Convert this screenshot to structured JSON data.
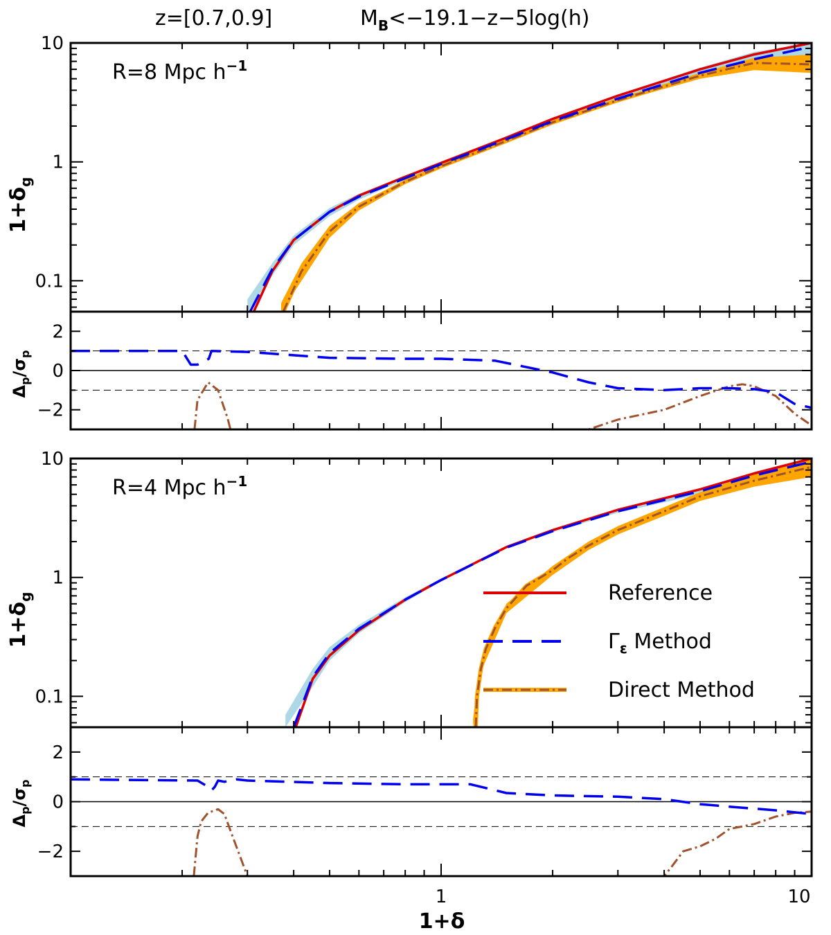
{
  "title_left": "z=[0.7,0.9]",
  "title_right_main": "M",
  "title_right_sub": "B",
  "title_right_rest": "<−19.1−z−5log(h)",
  "xlabel": "1+δ",
  "ylabel_main_base": "1+δ",
  "ylabel_main_sub": "g",
  "ylabel_resid_base": "Δ",
  "ylabel_resid_sub1": "p",
  "ylabel_resid_mid": "/σ",
  "ylabel_resid_sub2": "p",
  "legend": {
    "reference": "Reference",
    "gamma_symbol": "Γ",
    "gamma_sub": "ε",
    "gamma_rest": " Method",
    "direct": "Direct Method"
  },
  "colors": {
    "reference": "#dd0000",
    "gamma": "#0000ee",
    "direct": "#a0522d",
    "direct_band": "#ffa500",
    "gamma_band": "#add8e6",
    "ref_band": "#d2b48c"
  },
  "chart_data": [
    {
      "type": "line",
      "panel": "top-main",
      "annotation": "R=8 Mpc h",
      "annotation_sup": "−1",
      "xscale": "log",
      "yscale": "log",
      "xlim": [
        0.1,
        10
      ],
      "ylim": [
        0.055,
        10
      ],
      "xticks_major": [
        1,
        10
      ],
      "yticks": [
        0.1,
        1,
        10
      ],
      "yticklabels": [
        "0.1",
        "1",
        "10"
      ],
      "series": [
        {
          "name": "Reference",
          "x": [
            0.312,
            0.35,
            0.4,
            0.5,
            0.6,
            0.8,
            1.0,
            1.5,
            2.0,
            3.0,
            5.0,
            7.0,
            10.0
          ],
          "y": [
            0.055,
            0.12,
            0.22,
            0.38,
            0.52,
            0.75,
            0.98,
            1.6,
            2.3,
            3.6,
            6.0,
            8.0,
            10.0
          ]
        },
        {
          "name": "Γε Method",
          "x": [
            0.305,
            0.35,
            0.4,
            0.5,
            0.6,
            0.8,
            1.0,
            1.5,
            2.0,
            3.0,
            5.0,
            7.0,
            10.0
          ],
          "y": [
            0.055,
            0.125,
            0.22,
            0.38,
            0.51,
            0.73,
            0.96,
            1.55,
            2.2,
            3.4,
            5.6,
            7.3,
            9.3
          ]
        },
        {
          "name": "Direct Method",
          "x": [
            0.375,
            0.42,
            0.5,
            0.6,
            0.8,
            1.0,
            1.5,
            2.0,
            3.0,
            5.0,
            7.0,
            10.0
          ],
          "y": [
            0.055,
            0.12,
            0.26,
            0.42,
            0.68,
            0.92,
            1.5,
            2.15,
            3.3,
            5.3,
            6.8,
            6.6
          ]
        }
      ],
      "bands": [
        {
          "name": "Γε Method",
          "x": [
            0.3,
            0.35,
            0.4,
            0.5,
            0.6,
            0.8,
            1.0,
            1.5,
            2.0,
            3.0,
            5.0,
            7.0,
            10.0
          ],
          "lower": [
            0.055,
            0.11,
            0.2,
            0.35,
            0.48,
            0.71,
            0.94,
            1.5,
            2.1,
            3.2,
            5.0,
            6.0,
            6.2
          ],
          "upper": [
            0.07,
            0.14,
            0.24,
            0.41,
            0.54,
            0.76,
            0.99,
            1.62,
            2.32,
            3.65,
            6.2,
            8.4,
            10.0
          ]
        },
        {
          "name": "Direct Method",
          "x": [
            0.37,
            0.42,
            0.5,
            0.6,
            0.8,
            1.0,
            1.5,
            2.0,
            3.0,
            5.0,
            7.0,
            10.0
          ],
          "lower": [
            0.055,
            0.1,
            0.23,
            0.39,
            0.65,
            0.9,
            1.47,
            2.1,
            3.2,
            5.0,
            5.9,
            5.6
          ],
          "upper": [
            0.065,
            0.14,
            0.29,
            0.45,
            0.7,
            0.95,
            1.53,
            2.2,
            3.4,
            5.6,
            7.5,
            8.0
          ]
        }
      ]
    },
    {
      "type": "line",
      "panel": "top-residual",
      "xscale": "log",
      "xlim": [
        0.1,
        10
      ],
      "ylim": [
        -3,
        3
      ],
      "yticks": [
        -2,
        0,
        2
      ],
      "yticklabels": [
        "−2",
        "0",
        "2"
      ],
      "reference_lines": [
        {
          "y": 0,
          "style": "solid"
        },
        {
          "y": 1,
          "style": "dashed"
        },
        {
          "y": -1,
          "style": "dashed"
        }
      ],
      "series": [
        {
          "name": "Γε Method",
          "x": [
            0.1,
            0.2,
            0.211,
            0.22,
            0.236,
            0.24,
            0.3,
            0.5,
            0.8,
            1.0,
            1.4,
            2.0,
            2.5,
            3.0,
            4.0,
            5.0,
            6.0,
            7.0,
            8.0,
            9.0,
            10.0
          ],
          "y": [
            1.0,
            1.0,
            0.3,
            0.3,
            0.6,
            1.0,
            0.95,
            0.65,
            0.6,
            0.6,
            0.5,
            -0.1,
            -0.6,
            -0.9,
            -1.0,
            -0.9,
            -0.9,
            -0.95,
            -1.1,
            -1.7,
            -1.9
          ]
        },
        {
          "name": "Direct Method",
          "x": [
            0.216,
            0.22,
            0.225,
            0.235,
            0.25,
            0.265,
            0.27,
            2.5,
            3.0,
            4.0,
            5.0,
            6.0,
            6.5,
            7.0,
            8.0,
            9.0,
            10.0
          ],
          "y": [
            -3.0,
            -1.5,
            -1.2,
            -0.6,
            -1.0,
            -2.4,
            -3.0,
            -3.0,
            -2.5,
            -2.0,
            -1.3,
            -0.8,
            -0.7,
            -0.8,
            -1.3,
            -2.2,
            -2.8
          ]
        }
      ]
    },
    {
      "type": "line",
      "panel": "bottom-main",
      "annotation": "R=4 Mpc h",
      "annotation_sup": "−1",
      "xscale": "log",
      "yscale": "log",
      "xlim": [
        0.1,
        10
      ],
      "ylim": [
        0.055,
        10
      ],
      "xticks_major": [
        1,
        10
      ],
      "yticks": [
        0.1,
        1,
        10
      ],
      "yticklabels": [
        "0.1",
        "1",
        "10"
      ],
      "series": [
        {
          "name": "Reference",
          "x": [
            0.405,
            0.45,
            0.5,
            0.6,
            0.8,
            1.0,
            1.5,
            2.0,
            3.0,
            5.0,
            7.0,
            10.0
          ],
          "y": [
            0.055,
            0.14,
            0.22,
            0.36,
            0.65,
            0.95,
            1.8,
            2.5,
            3.7,
            5.5,
            7.5,
            10.0
          ]
        },
        {
          "name": "Γε Method",
          "x": [
            0.4,
            0.45,
            0.5,
            0.6,
            0.8,
            1.0,
            1.5,
            2.0,
            3.0,
            5.0,
            7.0,
            10.0
          ],
          "y": [
            0.055,
            0.145,
            0.23,
            0.37,
            0.65,
            0.95,
            1.78,
            2.45,
            3.6,
            5.3,
            7.2,
            9.4
          ]
        },
        {
          "name": "Direct Method",
          "x": [
            1.24,
            1.25,
            1.28,
            1.32,
            1.4,
            1.5,
            1.7,
            2.0,
            2.2,
            2.5,
            3.0,
            4.0,
            5.0,
            7.0,
            10.0
          ],
          "y": [
            0.055,
            0.1,
            0.17,
            0.25,
            0.38,
            0.55,
            0.85,
            1.15,
            1.45,
            1.85,
            2.5,
            3.6,
            4.8,
            6.5,
            8.5
          ]
        }
      ],
      "bands": [
        {
          "name": "Γε Method",
          "x": [
            0.38,
            0.45,
            0.5,
            0.6,
            0.8,
            1.0,
            1.5,
            2.0,
            3.0,
            5.0,
            7.0,
            10.0
          ],
          "lower": [
            0.055,
            0.12,
            0.2,
            0.34,
            0.62,
            0.93,
            1.75,
            2.4,
            3.5,
            5.0,
            6.7,
            8.5
          ],
          "upper": [
            0.07,
            0.17,
            0.26,
            0.4,
            0.68,
            0.98,
            1.82,
            2.52,
            3.75,
            5.6,
            7.7,
            10.0
          ]
        },
        {
          "name": "Direct Method",
          "x": [
            1.22,
            1.25,
            1.3,
            1.5,
            2.0,
            2.5,
            3.0,
            4.0,
            5.0,
            7.0,
            10.0
          ],
          "lower": [
            0.055,
            0.09,
            0.18,
            0.5,
            1.05,
            1.7,
            2.3,
            3.3,
            4.4,
            5.8,
            7.0
          ],
          "upper": [
            0.065,
            0.12,
            0.22,
            0.6,
            1.25,
            2.0,
            2.7,
            3.9,
            5.2,
            7.5,
            10.0
          ]
        }
      ]
    },
    {
      "type": "line",
      "panel": "bottom-residual",
      "xscale": "log",
      "xlim": [
        0.1,
        10
      ],
      "ylim": [
        -3,
        3
      ],
      "xticks": [
        1,
        10
      ],
      "xticklabels": [
        "1",
        "10"
      ],
      "yticks": [
        -2,
        0,
        2
      ],
      "yticklabels": [
        "−2",
        "0",
        "2"
      ],
      "reference_lines": [
        {
          "y": 0,
          "style": "solid"
        },
        {
          "y": 1,
          "style": "dashed"
        },
        {
          "y": -1,
          "style": "dashed"
        }
      ],
      "series": [
        {
          "name": "Γε Method",
          "x": [
            0.1,
            0.22,
            0.235,
            0.24,
            0.245,
            0.25,
            0.26,
            0.28,
            0.3,
            0.5,
            0.8,
            1.0,
            1.2,
            1.5,
            2.0,
            3.0,
            4.0,
            5.0,
            6.0,
            8.0,
            10.0
          ],
          "y": [
            0.9,
            0.85,
            0.6,
            0.45,
            0.6,
            0.85,
            0.8,
            0.9,
            0.85,
            0.75,
            0.7,
            0.7,
            0.7,
            0.35,
            0.25,
            0.2,
            0.1,
            -0.1,
            -0.2,
            -0.35,
            -0.5
          ]
        },
        {
          "name": "Direct Method",
          "x": [
            0.215,
            0.22,
            0.225,
            0.235,
            0.25,
            0.26,
            0.28,
            0.3,
            0.35,
            4.0,
            4.2,
            4.5,
            5.0,
            5.5,
            6.0,
            7.0,
            8.0,
            9.0,
            10.0
          ],
          "y": [
            -3.0,
            -1.4,
            -0.8,
            -0.45,
            -0.3,
            -0.5,
            -1.8,
            -3.0,
            -3.0,
            -3.0,
            -2.6,
            -2.0,
            -1.8,
            -1.5,
            -1.1,
            -0.9,
            -0.6,
            -0.45,
            -0.4
          ]
        }
      ]
    }
  ]
}
